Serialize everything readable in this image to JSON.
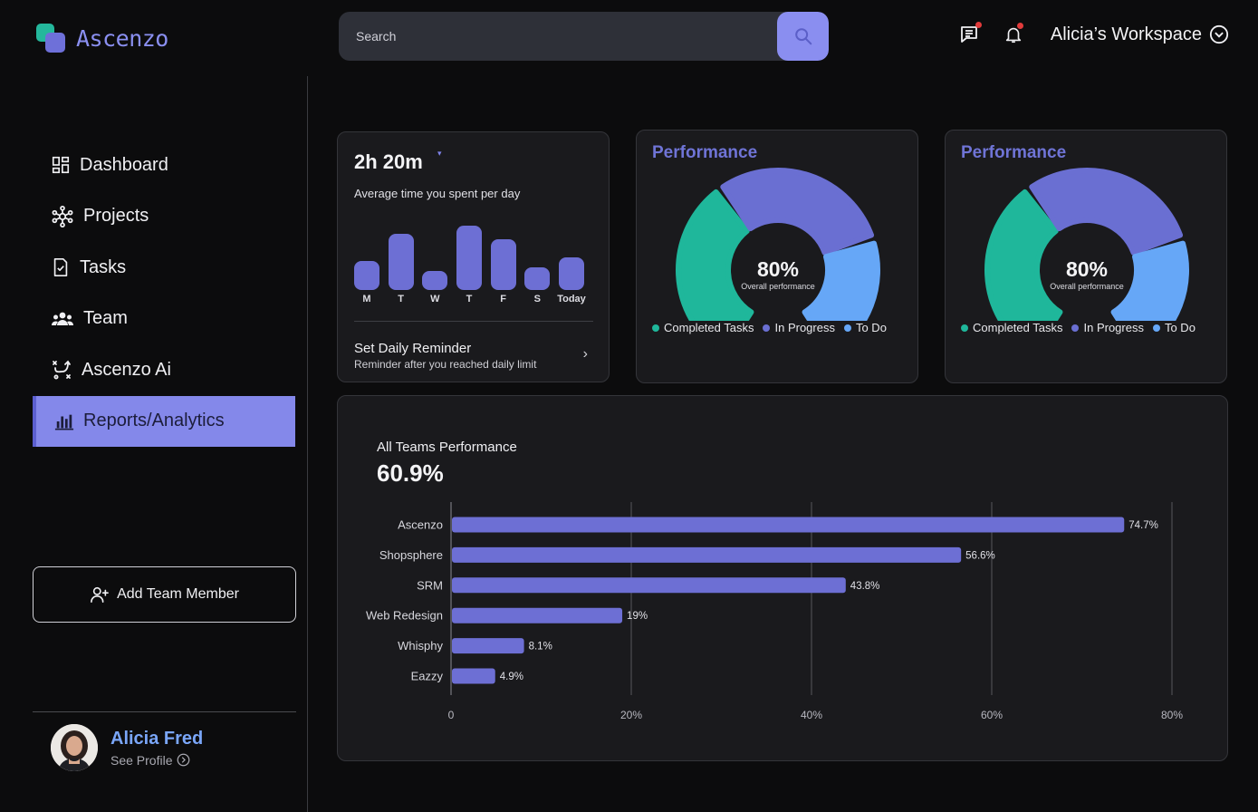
{
  "app": {
    "name": "Ascenzo"
  },
  "search": {
    "placeholder": "Search"
  },
  "header": {
    "workspace": "Alicia’s Workspace"
  },
  "colors": {
    "accent": "#8488ea",
    "bar": "#6d6fd4",
    "completed": "#1fb79b",
    "in_progress": "#6a6fd2",
    "todo": "#66a7f7"
  },
  "sidebar": {
    "items": [
      {
        "label": "Dashboard",
        "icon": "dashboard-icon"
      },
      {
        "label": "Projects",
        "icon": "projects-icon"
      },
      {
        "label": "Tasks",
        "icon": "tasks-icon"
      },
      {
        "label": "Team",
        "icon": "team-icon"
      },
      {
        "label": "Ascenzo Ai",
        "icon": "ai-icon"
      },
      {
        "label": "Reports/Analytics",
        "icon": "analytics-icon",
        "active": true
      }
    ],
    "add_member_label": "Add Team Member",
    "profile": {
      "name": "Alicia Fred",
      "link": "See Profile"
    }
  },
  "time_card": {
    "value": "2h 20m",
    "caret": "▾",
    "subtitle": "Average time you spent per day",
    "days": [
      "M",
      "T",
      "W",
      "T",
      "F",
      "S",
      "Today"
    ],
    "reminder_title": "Set Daily Reminder",
    "reminder_sub": "Reminder after you reached daily limit"
  },
  "performance_cards": [
    {
      "title": "Performance",
      "value": "80%",
      "value_label": "Overall performance",
      "legend": [
        "Completed Tasks",
        "In Progress",
        "To Do"
      ]
    },
    {
      "title": "Performance",
      "value": "80%",
      "value_label": "Overall performance",
      "legend": [
        "Completed Tasks",
        "In Progress",
        "To Do"
      ]
    }
  ],
  "chart_data": [
    {
      "type": "bar",
      "title": "Average time you spent per day",
      "categories": [
        "M",
        "T",
        "W",
        "T",
        "F",
        "S",
        "Today"
      ],
      "values": [
        36,
        70,
        24,
        81,
        64,
        28,
        41
      ],
      "unit": "relative",
      "ylim": [
        0,
        100
      ]
    },
    {
      "type": "pie",
      "title": "Performance",
      "categories": [
        "Completed Tasks",
        "In Progress",
        "To Do"
      ],
      "values": [
        38,
        36,
        26
      ],
      "center_label": "80%"
    },
    {
      "type": "bar",
      "orientation": "horizontal",
      "title": "All Teams Performance",
      "summary": "60.9%",
      "categories": [
        "Ascenzo",
        "Shopsphere",
        "SRM",
        "Web Redesign",
        "Whisphy",
        "Eazzy"
      ],
      "values": [
        74.7,
        56.6,
        43.8,
        19,
        8.1,
        4.9
      ],
      "value_labels": [
        "74.7%",
        "56.6%",
        "43.8%",
        "19%",
        "8.1%",
        "4.9%"
      ],
      "xlim": [
        0,
        80
      ],
      "x_ticks": [
        "0",
        "20%",
        "40%",
        "60%",
        "80%"
      ],
      "x_tick_values": [
        0,
        20,
        40,
        60,
        80
      ],
      "grid": true
    }
  ]
}
